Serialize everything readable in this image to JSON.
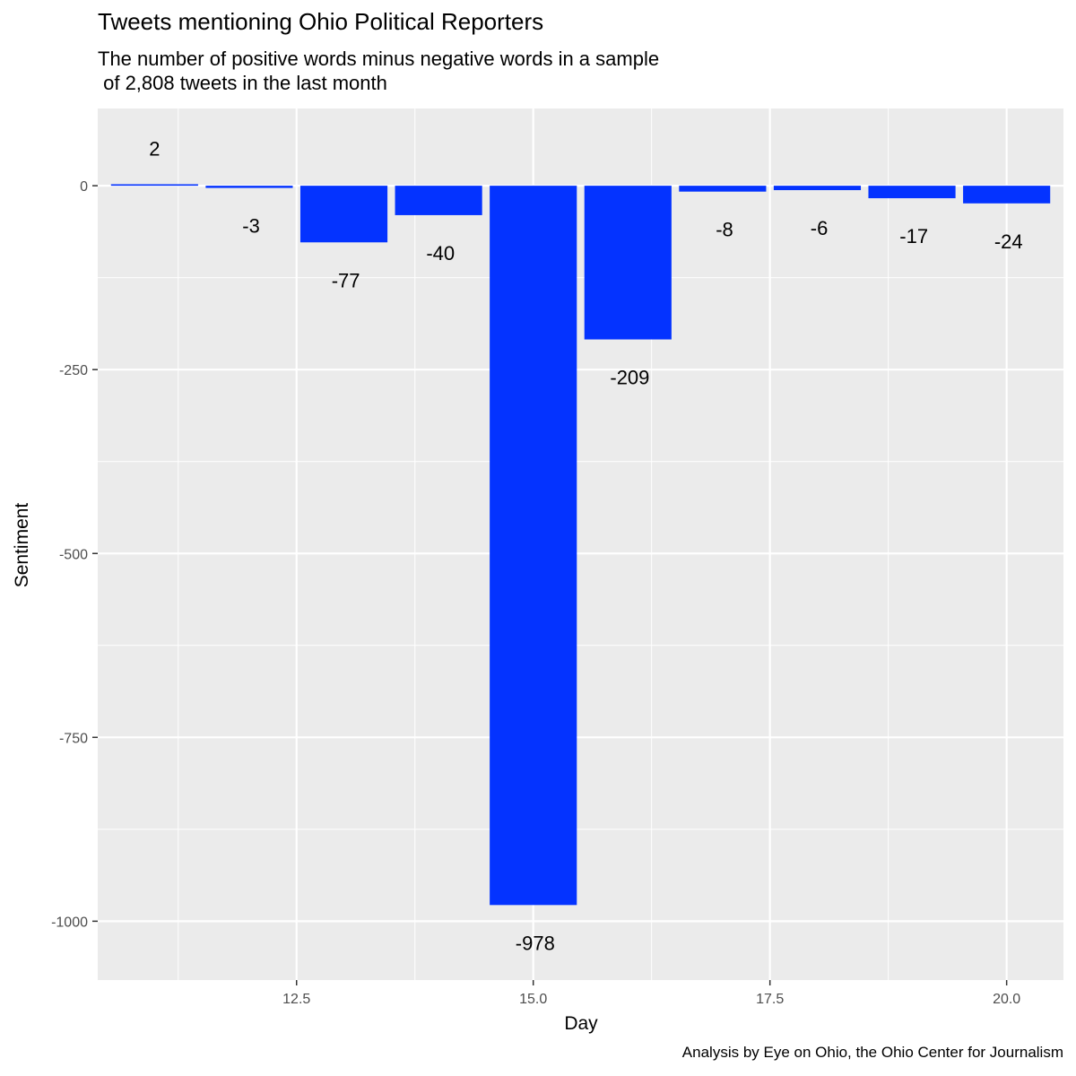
{
  "chart_data": {
    "type": "bar",
    "title": "Tweets mentioning Ohio Political Reporters",
    "subtitle": "The number of positive words minus negative words in a sample\n of 2,808 tweets in the last month",
    "caption": "Analysis by Eye on Ohio, the Ohio Center for Journalism",
    "xlabel": "Day",
    "ylabel": "Sentiment",
    "x": [
      11,
      12,
      13,
      14,
      15,
      16,
      17,
      18,
      19,
      20
    ],
    "values": [
      2,
      -3,
      -77,
      -40,
      -978,
      -209,
      -8,
      -6,
      -17,
      -24
    ],
    "xlim": [
      10.4,
      20.6
    ],
    "ylim": [
      -1080,
      105
    ],
    "x_ticks": [
      12.5,
      15.0,
      17.5,
      20.0
    ],
    "x_tick_labels": [
      "12.5",
      "15.0",
      "17.5",
      "20.0"
    ],
    "y_ticks": [
      0,
      -250,
      -500,
      -750,
      -1000
    ],
    "y_tick_labels": [
      "0",
      "-250",
      "-500",
      "-750",
      "-1000"
    ],
    "grid": true,
    "legend": "none",
    "colors": {
      "bar": "#0433ff",
      "panel": "#ebebeb",
      "grid": "#ffffff",
      "text": "#000000",
      "tick_text": "#4d4d4d"
    }
  }
}
